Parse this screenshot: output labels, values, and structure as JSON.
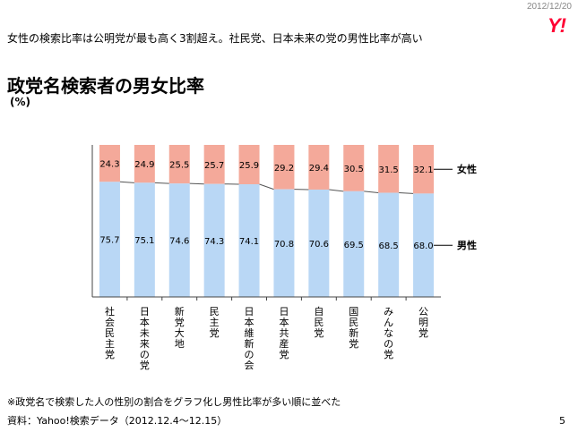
{
  "header": {
    "date": "2012/12/20",
    "logo_text": "Y!",
    "headline": "女性の検索比率は公明党が最も高く3割超え。社民党、日本未来の党の男性比率が高い"
  },
  "chart_title": "政党名検索者の男女比率",
  "unit_label": "(%)",
  "footer": {
    "note": "※政党名で検索した人の性別の割合をグラフ化し男性比率が多い順に並べた",
    "source": "資料：Yahoo!検索データ（2012.12.4～12.15）",
    "page_number": "5"
  },
  "colors": {
    "female": "#f4a99a",
    "male": "#b9d7f5",
    "grid": "#555555",
    "logo": "#ff0033"
  },
  "chart_data": {
    "type": "bar",
    "stacked": true,
    "percent": true,
    "categories": [
      "社会民主党",
      "日本未来の党",
      "新党大地",
      "民主党",
      "日本維新の会",
      "日本共産党",
      "自民党",
      "国民新党",
      "みんなの党",
      "公明党"
    ],
    "series": [
      {
        "name": "男性",
        "values": [
          75.7,
          75.1,
          74.6,
          74.3,
          74.1,
          70.8,
          70.6,
          69.5,
          68.5,
          68.0
        ]
      },
      {
        "name": "女性",
        "values": [
          24.3,
          24.9,
          25.5,
          25.7,
          25.9,
          29.2,
          29.4,
          30.5,
          31.5,
          32.1
        ]
      }
    ],
    "ylim": [
      0,
      100
    ],
    "legend_position": "right"
  }
}
